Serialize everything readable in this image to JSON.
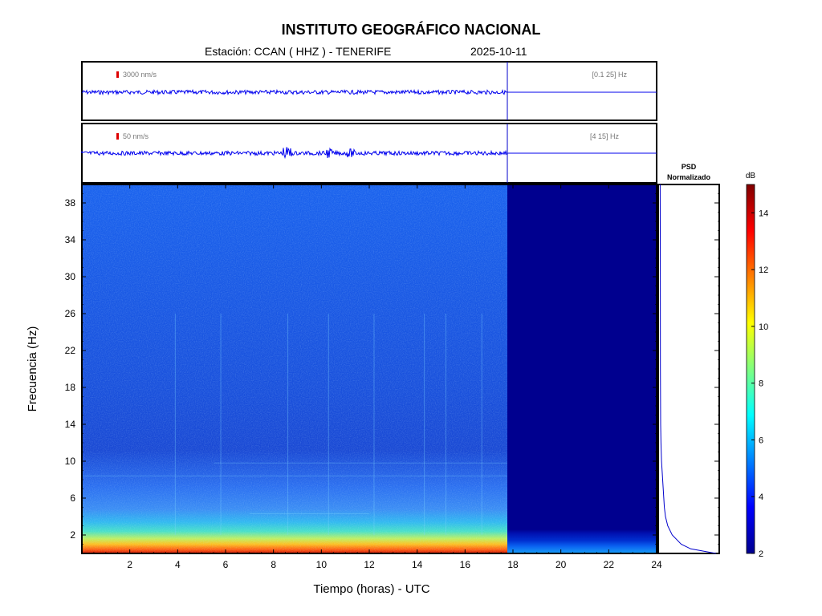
{
  "header": {
    "title": "INSTITUTO GEOGRÁFICO NACIONAL",
    "station": "Estación:  CCAN ( HHZ ) - TENERIFE",
    "date": "2025-10-11"
  },
  "traces": [
    {
      "scale_label": "3000 nm/s",
      "band_label": "[0.1 25] Hz",
      "scale_color": "#dd0000"
    },
    {
      "scale_label": "50 nm/s",
      "band_label": "[4 15] Hz",
      "scale_color": "#dd0000"
    }
  ],
  "psd_panel": {
    "title_line1": "PSD",
    "title_line2": "Normalizado"
  },
  "chart_data": {
    "type": "heatmap",
    "xlabel": "Tiempo (horas) - UTC",
    "ylabel": "Frecuencia  (Hz)",
    "xlim": [
      0,
      24
    ],
    "ylim": [
      0,
      40
    ],
    "xticks": [
      2,
      4,
      6,
      8,
      10,
      12,
      14,
      16,
      18,
      20,
      22,
      24
    ],
    "yticks": [
      2,
      6,
      10,
      14,
      18,
      22,
      26,
      30,
      34,
      38
    ],
    "data_end_hour": 17.8,
    "colorbar": {
      "label": "dB",
      "range": [
        2,
        15
      ],
      "ticks": [
        2,
        4,
        6,
        8,
        10,
        12,
        14
      ],
      "colormap": "jet"
    },
    "psd_profile": {
      "frequency_hz": [
        0,
        0.5,
        1,
        2,
        3,
        4,
        5,
        6,
        7,
        8,
        9,
        10,
        12,
        14,
        20,
        30,
        40
      ],
      "normalized": [
        1.0,
        0.55,
        0.38,
        0.22,
        0.14,
        0.1,
        0.08,
        0.07,
        0.06,
        0.05,
        0.04,
        0.03,
        0.02,
        0.015,
        0.01,
        0.008,
        0.006
      ]
    },
    "grid": false
  },
  "colors": {
    "trace": "#0000ee",
    "frame": "#000000"
  }
}
